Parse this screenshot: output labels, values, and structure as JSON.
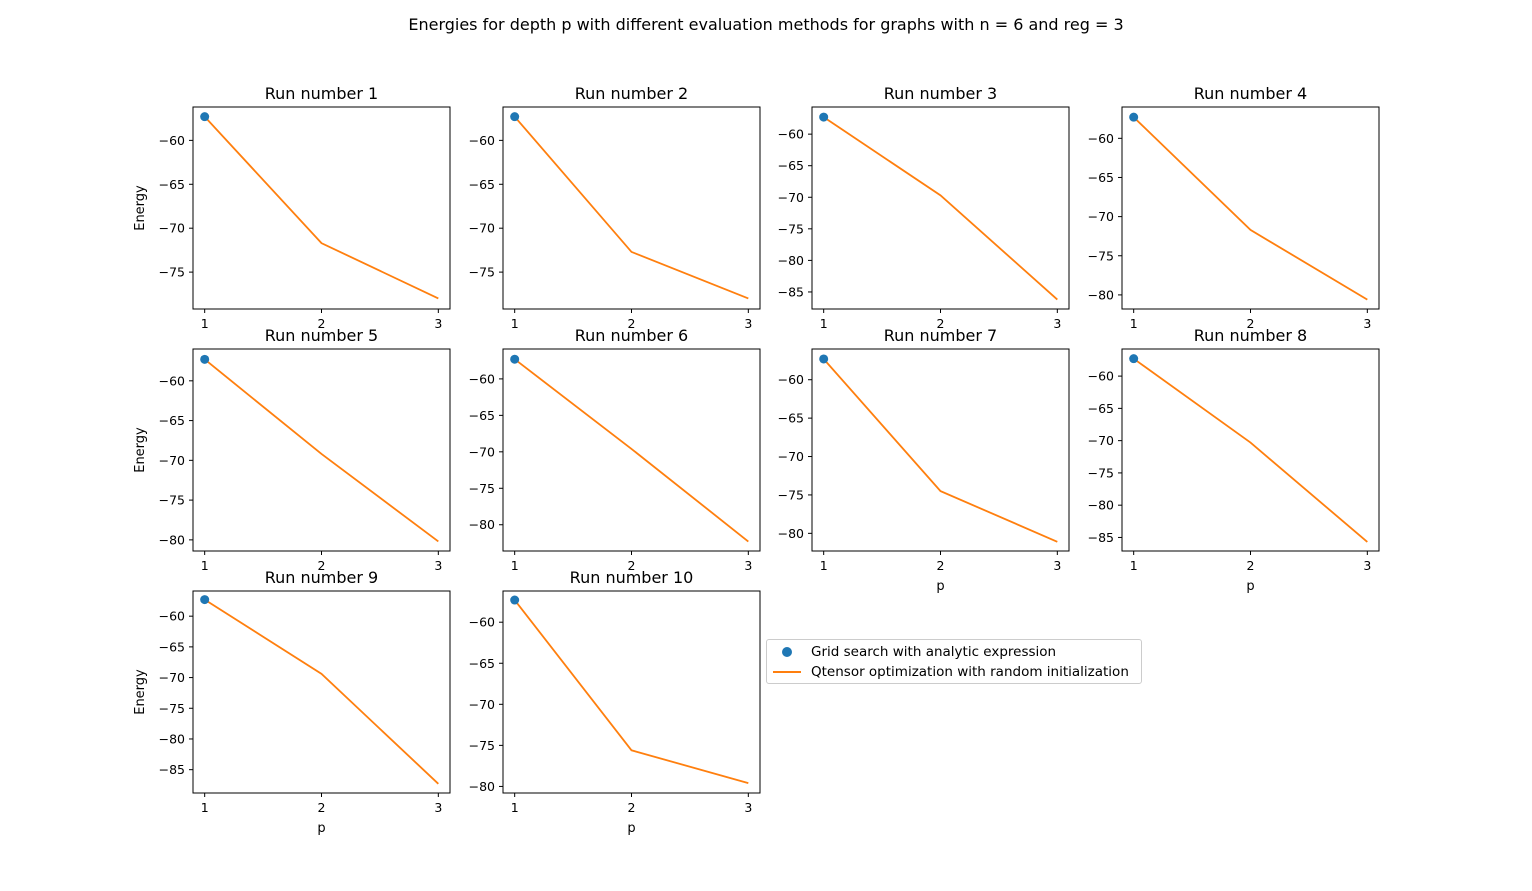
{
  "figure": {
    "title": "Energies for depth p with different evaluation methods for graphs with n = 6 and reg = 3"
  },
  "legend": {
    "items": [
      {
        "label": "Grid search with analytic expression",
        "kind": "scatter",
        "color": "#1f77b4"
      },
      {
        "label": "Qtensor optimization with random initialization",
        "kind": "line",
        "color": "#ff7f0e"
      }
    ]
  },
  "chart_data": [
    {
      "type": "line",
      "title": "Run number 1",
      "xlabel": "",
      "ylabel": "Energy",
      "x": [
        1,
        2,
        3
      ],
      "xticks": [
        1,
        2,
        3
      ],
      "yticks": [
        -60,
        -65,
        -70,
        -75
      ],
      "ylim": [
        -79.2,
        -56.2
      ],
      "series": [
        {
          "kind": "scatter",
          "color": "#1f77b4",
          "points": [
            [
              1,
              -57.3
            ]
          ]
        },
        {
          "kind": "line",
          "color": "#ff7f0e",
          "values": [
            -57.3,
            -71.7,
            -78.0
          ]
        }
      ]
    },
    {
      "type": "line",
      "title": "Run number 2",
      "xlabel": "",
      "ylabel": "",
      "x": [
        1,
        2,
        3
      ],
      "xticks": [
        1,
        2,
        3
      ],
      "yticks": [
        -60,
        -65,
        -70,
        -75
      ],
      "ylim": [
        -79.2,
        -56.2
      ],
      "series": [
        {
          "kind": "scatter",
          "color": "#1f77b4",
          "points": [
            [
              1,
              -57.3
            ]
          ]
        },
        {
          "kind": "line",
          "color": "#ff7f0e",
          "values": [
            -57.3,
            -72.7,
            -78.0
          ]
        }
      ]
    },
    {
      "type": "line",
      "title": "Run number 3",
      "xlabel": "",
      "ylabel": "",
      "x": [
        1,
        2,
        3
      ],
      "xticks": [
        1,
        2,
        3
      ],
      "yticks": [
        -60,
        -65,
        -70,
        -75,
        -80,
        -85
      ],
      "ylim": [
        -87.7,
        -55.7
      ],
      "series": [
        {
          "kind": "scatter",
          "color": "#1f77b4",
          "points": [
            [
              1,
              -57.3
            ]
          ]
        },
        {
          "kind": "line",
          "color": "#ff7f0e",
          "values": [
            -57.3,
            -69.7,
            -86.2
          ]
        }
      ]
    },
    {
      "type": "line",
      "title": "Run number 4",
      "xlabel": "",
      "ylabel": "",
      "x": [
        1,
        2,
        3
      ],
      "xticks": [
        1,
        2,
        3
      ],
      "yticks": [
        -60,
        -65,
        -70,
        -75,
        -80
      ],
      "ylim": [
        -81.8,
        -56.0
      ],
      "series": [
        {
          "kind": "scatter",
          "color": "#1f77b4",
          "points": [
            [
              1,
              -57.3
            ]
          ]
        },
        {
          "kind": "line",
          "color": "#ff7f0e",
          "values": [
            -57.3,
            -71.7,
            -80.6
          ]
        }
      ]
    },
    {
      "type": "line",
      "title": "Run number 5",
      "xlabel": "",
      "ylabel": "Energy",
      "x": [
        1,
        2,
        3
      ],
      "xticks": [
        1,
        2,
        3
      ],
      "yticks": [
        -60,
        -65,
        -70,
        -75,
        -80
      ],
      "ylim": [
        -81.4,
        -56.0
      ],
      "series": [
        {
          "kind": "scatter",
          "color": "#1f77b4",
          "points": [
            [
              1,
              -57.3
            ]
          ]
        },
        {
          "kind": "line",
          "color": "#ff7f0e",
          "values": [
            -57.3,
            -69.2,
            -80.2
          ]
        }
      ]
    },
    {
      "type": "line",
      "title": "Run number 6",
      "xlabel": "",
      "ylabel": "",
      "x": [
        1,
        2,
        3
      ],
      "xticks": [
        1,
        2,
        3
      ],
      "yticks": [
        -60,
        -65,
        -70,
        -75,
        -80
      ],
      "ylim": [
        -83.6,
        -55.9
      ],
      "series": [
        {
          "kind": "scatter",
          "color": "#1f77b4",
          "points": [
            [
              1,
              -57.3
            ]
          ]
        },
        {
          "kind": "line",
          "color": "#ff7f0e",
          "values": [
            -57.3,
            -69.6,
            -82.3
          ]
        }
      ]
    },
    {
      "type": "line",
      "title": "Run number 7",
      "xlabel": "p",
      "ylabel": "",
      "x": [
        1,
        2,
        3
      ],
      "xticks": [
        1,
        2,
        3
      ],
      "yticks": [
        -60,
        -65,
        -70,
        -75,
        -80
      ],
      "ylim": [
        -82.3,
        -56.0
      ],
      "series": [
        {
          "kind": "scatter",
          "color": "#1f77b4",
          "points": [
            [
              1,
              -57.3
            ]
          ]
        },
        {
          "kind": "line",
          "color": "#ff7f0e",
          "values": [
            -57.3,
            -74.5,
            -81.1
          ]
        }
      ]
    },
    {
      "type": "line",
      "title": "Run number 8",
      "xlabel": "p",
      "ylabel": "",
      "x": [
        1,
        2,
        3
      ],
      "xticks": [
        1,
        2,
        3
      ],
      "yticks": [
        -60,
        -65,
        -70,
        -75,
        -80,
        -85
      ],
      "ylim": [
        -87.1,
        -55.8
      ],
      "series": [
        {
          "kind": "scatter",
          "color": "#1f77b4",
          "points": [
            [
              1,
              -57.3
            ]
          ]
        },
        {
          "kind": "line",
          "color": "#ff7f0e",
          "values": [
            -57.3,
            -70.3,
            -85.7
          ]
        }
      ]
    },
    {
      "type": "line",
      "title": "Run number 9",
      "xlabel": "p",
      "ylabel": "Energy",
      "x": [
        1,
        2,
        3
      ],
      "xticks": [
        1,
        2,
        3
      ],
      "yticks": [
        -60,
        -65,
        -70,
        -75,
        -80,
        -85
      ],
      "ylim": [
        -88.8,
        -55.9
      ],
      "series": [
        {
          "kind": "scatter",
          "color": "#1f77b4",
          "points": [
            [
              1,
              -57.3
            ]
          ]
        },
        {
          "kind": "line",
          "color": "#ff7f0e",
          "values": [
            -57.3,
            -69.4,
            -87.3
          ]
        }
      ]
    },
    {
      "type": "line",
      "title": "Run number 10",
      "xlabel": "p",
      "ylabel": "",
      "x": [
        1,
        2,
        3
      ],
      "xticks": [
        1,
        2,
        3
      ],
      "yticks": [
        -60,
        -65,
        -70,
        -75,
        -80
      ],
      "ylim": [
        -80.8,
        -56.2
      ],
      "series": [
        {
          "kind": "scatter",
          "color": "#1f77b4",
          "points": [
            [
              1,
              -57.3
            ]
          ]
        },
        {
          "kind": "line",
          "color": "#ff7f0e",
          "values": [
            -57.3,
            -75.6,
            -79.6
          ]
        }
      ]
    }
  ]
}
